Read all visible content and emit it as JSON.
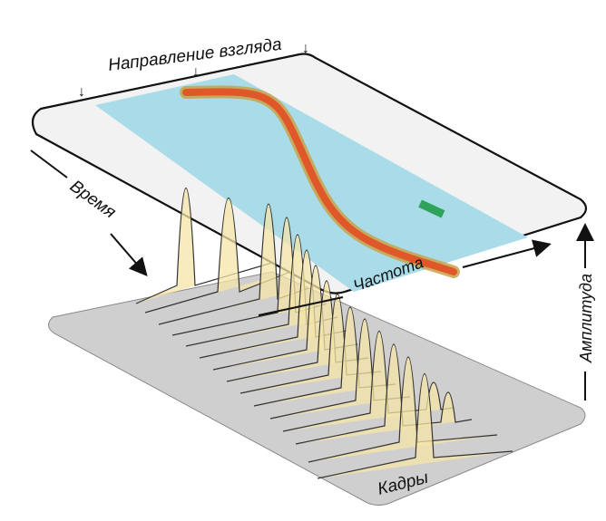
{
  "labels": {
    "view_direction": "Направление взгляда",
    "time": "Время",
    "frequency": "Частота",
    "amplitude": "Амплитуда",
    "frames": "Кадры",
    "arrow_glyph": "↓"
  },
  "colors": {
    "base_plane": "#cfcfcf",
    "top_plane_fill": "#f2f2f2",
    "band": "#a9dce8",
    "track_inner": "#e0572a",
    "track_outer": "#c9a24a",
    "peak_fill": "#f6e6a8",
    "line": "#222222",
    "blip": "#2fa35a"
  },
  "icons": [
    "down-arrow-icon",
    "right-arrow-icon",
    "up-arrow-icon"
  ]
}
